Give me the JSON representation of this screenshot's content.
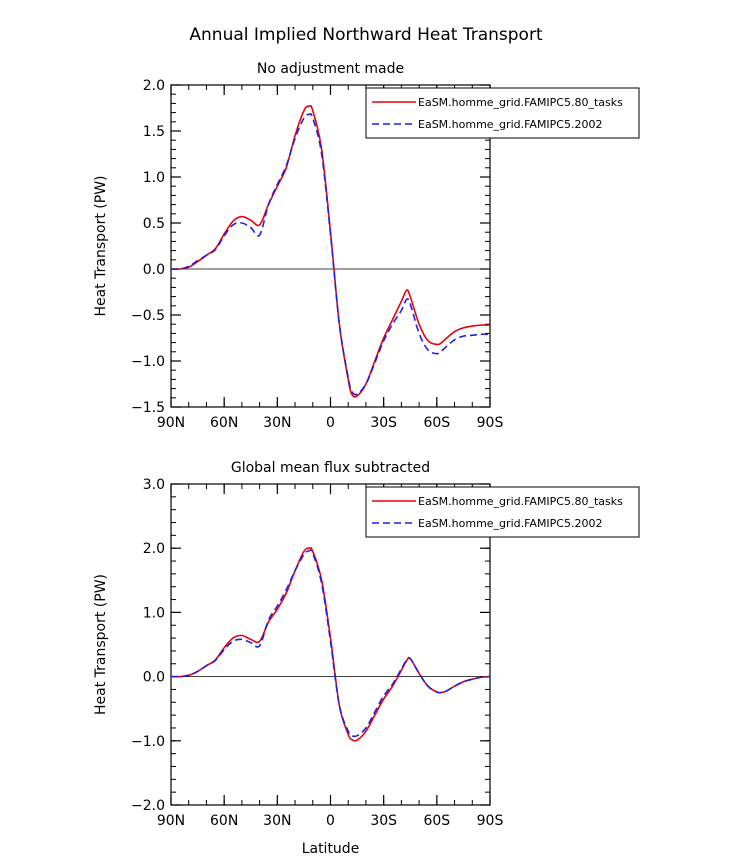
{
  "figure": {
    "title": "Annual Implied Northward Heat Transport"
  },
  "colors": {
    "series1": "#e8000b",
    "series2": "#1f1fe8",
    "axis": "#000000",
    "zero_line": "#000000"
  },
  "chart_data": [
    {
      "type": "line",
      "title": "No adjustment made",
      "xlabel": "",
      "ylabel": "Heat Transport (PW)",
      "xlim": [
        90,
        -90
      ],
      "ylim": [
        -1.5,
        2.0
      ],
      "x_ticks": [
        90,
        60,
        30,
        0,
        -30,
        -60,
        -90
      ],
      "x_tick_labels": [
        "90N",
        "60N",
        "30N",
        "0",
        "30S",
        "60S",
        "90S"
      ],
      "y_ticks": [
        -1.5,
        -1.0,
        -0.5,
        0.0,
        0.5,
        1.0,
        1.5,
        2.0
      ],
      "y_tick_labels": [
        "−1.5",
        "−1.0",
        "−0.5",
        "0.0",
        "0.5",
        "1.0",
        "1.5",
        "2.0"
      ],
      "legend": "top-right",
      "x": [
        90,
        85,
        80,
        75,
        70,
        65,
        60,
        55,
        50,
        45,
        40,
        35,
        30,
        25,
        20,
        15,
        12,
        10,
        5,
        0,
        -5,
        -10,
        -12,
        -15,
        -20,
        -25,
        -30,
        -35,
        -40,
        -43,
        -45,
        -50,
        -55,
        -60,
        -62,
        -65,
        -70,
        -75,
        -80,
        -85,
        -90
      ],
      "series": [
        {
          "name": "EaSM.homme_grid.FAMIPC5.80_tasks",
          "color": "#e8000b",
          "dash": "solid",
          "values": [
            0.0,
            0.0,
            0.02,
            0.08,
            0.15,
            0.22,
            0.38,
            0.52,
            0.57,
            0.53,
            0.48,
            0.7,
            0.9,
            1.1,
            1.45,
            1.72,
            1.77,
            1.72,
            1.3,
            0.4,
            -0.6,
            -1.2,
            -1.36,
            -1.38,
            -1.25,
            -1.0,
            -0.75,
            -0.55,
            -0.35,
            -0.23,
            -0.3,
            -0.6,
            -0.78,
            -0.82,
            -0.81,
            -0.76,
            -0.68,
            -0.64,
            -0.62,
            -0.61,
            -0.61
          ]
        },
        {
          "name": "EaSM.homme_grid.FAMIPC5.2002",
          "color": "#1f1fe8",
          "dash": "dashed",
          "values": [
            0.0,
            0.0,
            0.03,
            0.09,
            0.15,
            0.21,
            0.36,
            0.48,
            0.5,
            0.45,
            0.37,
            0.7,
            0.92,
            1.12,
            1.42,
            1.64,
            1.68,
            1.64,
            1.25,
            0.38,
            -0.6,
            -1.18,
            -1.33,
            -1.36,
            -1.25,
            -1.02,
            -0.78,
            -0.6,
            -0.45,
            -0.33,
            -0.38,
            -0.7,
            -0.88,
            -0.92,
            -0.9,
            -0.85,
            -0.77,
            -0.73,
            -0.72,
            -0.71,
            -0.71
          ]
        }
      ]
    },
    {
      "type": "line",
      "title": "Global mean flux subtracted",
      "xlabel": "Latitude",
      "ylabel": "Heat Transport (PW)",
      "xlim": [
        90,
        -90
      ],
      "ylim": [
        -2.0,
        3.0
      ],
      "x_ticks": [
        90,
        60,
        30,
        0,
        -30,
        -60,
        -90
      ],
      "x_tick_labels": [
        "90N",
        "60N",
        "30N",
        "0",
        "30S",
        "60S",
        "90S"
      ],
      "y_ticks": [
        -2.0,
        -1.0,
        0.0,
        1.0,
        2.0,
        3.0
      ],
      "y_tick_labels": [
        "−2.0",
        "−1.0",
        "0.0",
        "1.0",
        "2.0",
        "3.0"
      ],
      "legend": "top-right",
      "x": [
        90,
        85,
        80,
        75,
        70,
        65,
        60,
        55,
        50,
        45,
        40,
        35,
        30,
        25,
        20,
        15,
        12,
        10,
        5,
        0,
        -5,
        -10,
        -12,
        -15,
        -20,
        -25,
        -30,
        -35,
        -40,
        -43,
        -45,
        -50,
        -55,
        -60,
        -62,
        -65,
        -70,
        -75,
        -80,
        -85,
        -90
      ],
      "series": [
        {
          "name": "EaSM.homme_grid.FAMIPC5.80_tasks",
          "color": "#e8000b",
          "dash": "solid",
          "values": [
            0.0,
            0.0,
            0.02,
            0.08,
            0.17,
            0.26,
            0.45,
            0.6,
            0.64,
            0.58,
            0.55,
            0.85,
            1.05,
            1.3,
            1.65,
            1.95,
            2.0,
            1.95,
            1.5,
            0.6,
            -0.45,
            -0.9,
            -0.98,
            -0.99,
            -0.85,
            -0.6,
            -0.35,
            -0.15,
            0.1,
            0.25,
            0.28,
            0.05,
            -0.15,
            -0.24,
            -0.25,
            -0.23,
            -0.15,
            -0.08,
            -0.04,
            -0.01,
            0.0
          ]
        },
        {
          "name": "EaSM.homme_grid.FAMIPC5.2002",
          "color": "#1f1fe8",
          "dash": "dashed",
          "values": [
            0.0,
            0.0,
            0.02,
            0.08,
            0.17,
            0.25,
            0.42,
            0.55,
            0.58,
            0.53,
            0.48,
            0.88,
            1.1,
            1.35,
            1.65,
            1.9,
            1.96,
            1.92,
            1.45,
            0.55,
            -0.45,
            -0.85,
            -0.92,
            -0.92,
            -0.8,
            -0.55,
            -0.3,
            -0.12,
            0.12,
            0.26,
            0.28,
            0.05,
            -0.15,
            -0.24,
            -0.25,
            -0.23,
            -0.15,
            -0.08,
            -0.04,
            -0.01,
            0.0
          ]
        }
      ]
    }
  ]
}
